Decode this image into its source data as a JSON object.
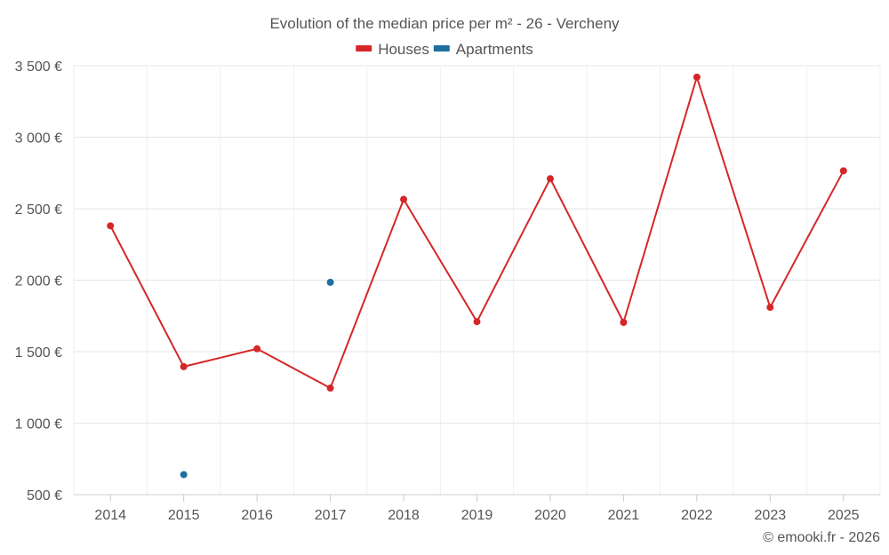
{
  "chart_data": {
    "type": "line",
    "title": "Evolution of the median price per m² - 26 - Vercheny",
    "x": [
      "2014",
      "2015",
      "2016",
      "2017",
      "2018",
      "2019",
      "2020",
      "2021",
      "2022",
      "2023",
      "2025"
    ],
    "series": [
      {
        "name": "Houses",
        "color": "#d62728",
        "values": [
          2380,
          1395,
          1520,
          1245,
          2565,
          1710,
          2710,
          1705,
          3420,
          1810,
          2765
        ]
      },
      {
        "name": "Apartments",
        "color": "#1f6f9f",
        "values": [
          null,
          640,
          null,
          1985,
          null,
          null,
          null,
          null,
          null,
          null,
          null
        ]
      }
    ],
    "yticks": [
      500,
      1000,
      1500,
      2000,
      2500,
      3000,
      3500
    ],
    "ytick_labels": [
      "500 €",
      "1 000 €",
      "1 500 €",
      "2 000 €",
      "2 500 €",
      "3 000 €",
      "3 500 €"
    ],
    "ylim": [
      500,
      3500
    ],
    "grid": true,
    "legend": "top-center",
    "credit": "© emooki.fr - 2026"
  }
}
